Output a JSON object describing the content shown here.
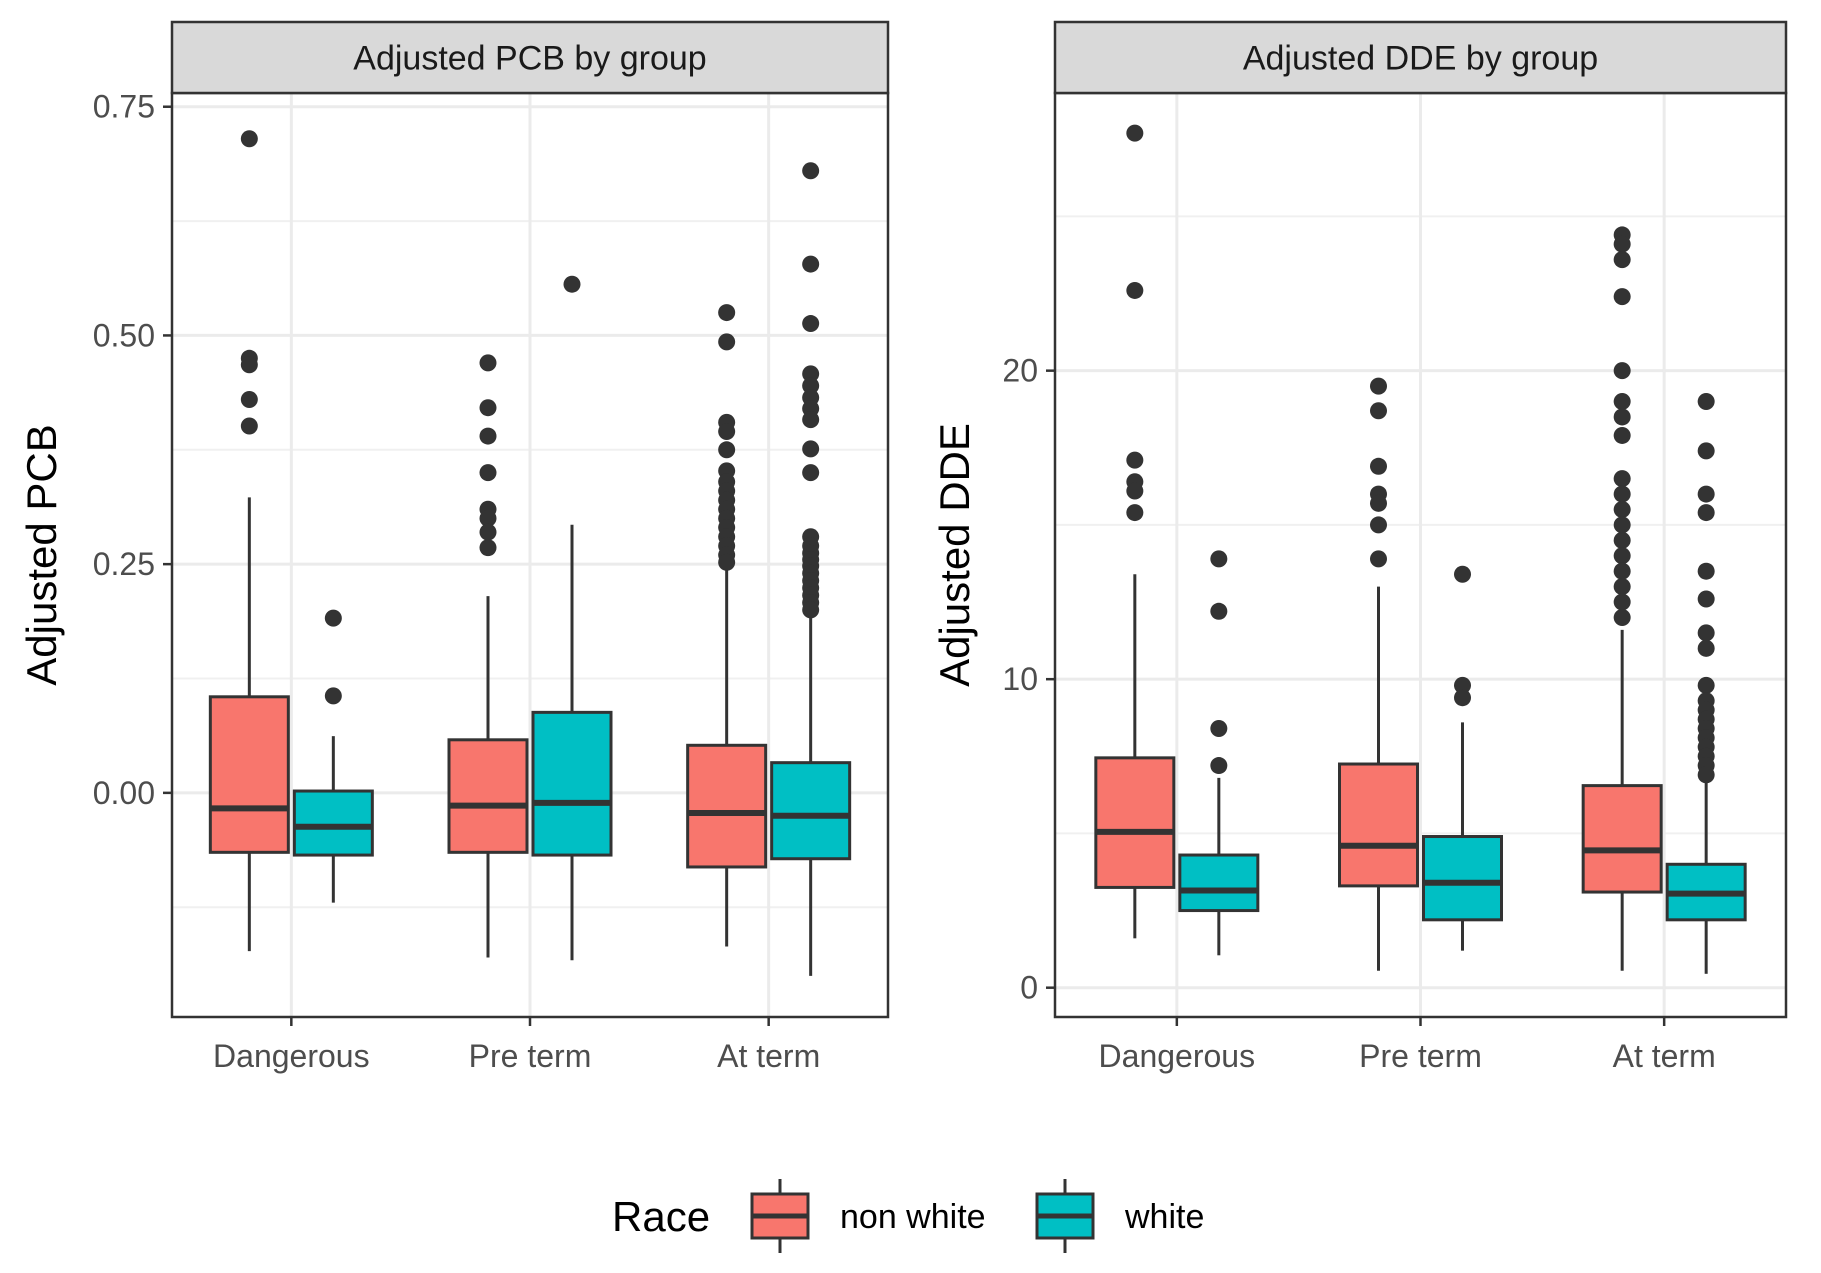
{
  "chart_data": [
    {
      "type": "boxplot",
      "title": "Adjusted PCB by group",
      "ylabel": "Adjusted PCB",
      "xlabel": "",
      "categories": [
        "Dangerous",
        "Pre term",
        "At term"
      ],
      "ylim": [
        -0.245,
        0.765
      ],
      "yticks": [
        0.0,
        0.25,
        0.5,
        0.75
      ],
      "ytick_labels": [
        "0.00",
        "0.25",
        "0.50",
        "0.75"
      ],
      "grid": true,
      "series": [
        {
          "name": "non white",
          "color": "#F8766D",
          "boxes": [
            {
              "category": "Dangerous",
              "q1": -0.065,
              "median": -0.017,
              "q3": 0.105,
              "whisker_low": -0.173,
              "whisker_high": 0.323,
              "outliers": [
                0.715,
                0.475,
                0.468,
                0.43,
                0.401
              ]
            },
            {
              "category": "Pre term",
              "q1": -0.065,
              "median": -0.014,
              "q3": 0.058,
              "whisker_low": -0.18,
              "whisker_high": 0.215,
              "outliers": [
                0.47,
                0.421,
                0.39,
                0.35,
                0.31,
                0.3,
                0.285,
                0.268
              ]
            },
            {
              "category": "At term",
              "q1": -0.081,
              "median": -0.022,
              "q3": 0.052,
              "whisker_low": -0.168,
              "whisker_high": 0.248,
              "outliers": [
                0.525,
                0.493,
                0.405,
                0.395,
                0.375,
                0.352,
                0.34,
                0.33,
                0.32,
                0.31,
                0.3,
                0.29,
                0.28,
                0.27,
                0.26,
                0.252
              ]
            }
          ]
        },
        {
          "name": "white",
          "color": "#00BFC4",
          "boxes": [
            {
              "category": "Dangerous",
              "q1": -0.068,
              "median": -0.037,
              "q3": 0.002,
              "whisker_low": -0.12,
              "whisker_high": 0.062,
              "outliers": [
                0.191,
                0.106
              ]
            },
            {
              "category": "Pre term",
              "q1": -0.068,
              "median": -0.011,
              "q3": 0.088,
              "whisker_low": -0.183,
              "whisker_high": 0.293,
              "outliers": [
                0.556
              ]
            },
            {
              "category": "At term",
              "q1": -0.072,
              "median": -0.025,
              "q3": 0.033,
              "whisker_low": -0.2,
              "whisker_high": 0.193,
              "outliers": [
                0.68,
                0.578,
                0.513,
                0.458,
                0.445,
                0.432,
                0.42,
                0.408,
                0.376,
                0.35,
                0.28,
                0.27,
                0.262,
                0.255,
                0.248,
                0.24,
                0.232,
                0.224,
                0.216,
                0.208,
                0.2
              ]
            }
          ]
        }
      ]
    },
    {
      "type": "boxplot",
      "title": "Adjusted DDE by group",
      "ylabel": "Adjusted DDE",
      "xlabel": "",
      "categories": [
        "Dangerous",
        "Pre term",
        "At term"
      ],
      "ylim": [
        -0.95,
        29.0
      ],
      "yticks": [
        0,
        10,
        20
      ],
      "ytick_labels": [
        "0",
        "10",
        "20"
      ],
      "grid": true,
      "series": [
        {
          "name": "non white",
          "color": "#F8766D",
          "boxes": [
            {
              "category": "Dangerous",
              "q1": 3.25,
              "median": 5.05,
              "q3": 7.45,
              "whisker_low": 1.6,
              "whisker_high": 13.4,
              "outliers": [
                27.7,
                22.6,
                17.1,
                16.4,
                16.1,
                15.4
              ]
            },
            {
              "category": "Pre term",
              "q1": 3.3,
              "median": 4.6,
              "q3": 7.25,
              "whisker_low": 0.55,
              "whisker_high": 13.0,
              "outliers": [
                19.5,
                18.7,
                16.9,
                16.0,
                15.7,
                15.0,
                13.9
              ]
            },
            {
              "category": "At term",
              "q1": 3.1,
              "median": 4.45,
              "q3": 6.55,
              "whisker_low": 0.55,
              "whisker_high": 11.6,
              "outliers": [
                24.4,
                24.1,
                23.6,
                22.4,
                20.0,
                19.0,
                18.5,
                17.9,
                16.5,
                16.0,
                15.5,
                15.0,
                14.5,
                14.0,
                13.5,
                13.0,
                12.5,
                12.0
              ]
            }
          ]
        },
        {
          "name": "white",
          "color": "#00BFC4",
          "boxes": [
            {
              "category": "Dangerous",
              "q1": 2.5,
              "median": 3.15,
              "q3": 4.3,
              "whisker_low": 1.05,
              "whisker_high": 6.8,
              "outliers": [
                13.9,
                12.2,
                8.4,
                7.2
              ]
            },
            {
              "category": "Pre term",
              "q1": 2.2,
              "median": 3.4,
              "q3": 4.9,
              "whisker_low": 1.2,
              "whisker_high": 8.6,
              "outliers": [
                13.4,
                9.8,
                9.4
              ]
            },
            {
              "category": "At term",
              "q1": 2.2,
              "median": 3.05,
              "q3": 4.0,
              "whisker_low": 0.45,
              "whisker_high": 6.7,
              "outliers": [
                19.0,
                17.4,
                16.0,
                15.4,
                13.5,
                12.6,
                11.5,
                11.0,
                9.8,
                9.3,
                9.0,
                8.7,
                8.4,
                8.1,
                7.8,
                7.5,
                7.2,
                6.9
              ]
            }
          ]
        }
      ]
    }
  ],
  "legend": {
    "title": "Race",
    "position": "bottom",
    "entries": [
      {
        "label": "non white",
        "color": "#F8766D"
      },
      {
        "label": "white",
        "color": "#00BFC4"
      }
    ]
  }
}
